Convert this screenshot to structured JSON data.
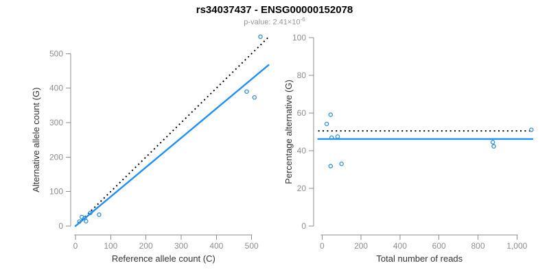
{
  "header": {
    "title": "rs34037437 - ENSG00000152078",
    "pvalue_base": "p-value: 2.41×10",
    "pvalue_exponent": "-6"
  },
  "colors": {
    "fit_line": "#1E8FFF",
    "identity_line": "#000000",
    "point_stroke": "#2E8FE0",
    "axis": "#8E8E8E",
    "tick_label": "#8E8E8E",
    "axis_title": "#333333",
    "subtitle_text": "#969696"
  },
  "chart_data": [
    {
      "name": "allele-counts",
      "type": "scatter",
      "xlabel": "Reference allele count (C)",
      "ylabel": "Alternative allele count (G)",
      "xlim": [
        0,
        548
      ],
      "ylim": [
        0,
        550
      ],
      "xticks": [
        0,
        100,
        200,
        300,
        400,
        500
      ],
      "xtick_labels": [
        "0",
        "100",
        "200",
        "300",
        "400",
        "500"
      ],
      "yticks": [
        0,
        100,
        200,
        300,
        400,
        500
      ],
      "ytick_labels": [
        "0",
        "100",
        "200",
        "300",
        "400",
        "500"
      ],
      "points": [
        [
          11,
          13
        ],
        [
          18,
          26
        ],
        [
          26,
          23
        ],
        [
          42,
          38
        ],
        [
          30,
          14
        ],
        [
          67,
          33
        ],
        [
          486,
          390
        ],
        [
          508,
          373
        ],
        [
          525,
          549
        ]
      ],
      "lines": [
        {
          "name": "identity",
          "style": "dotted",
          "color": "#000000",
          "from": [
            0,
            0
          ],
          "to": [
            548,
            548
          ]
        },
        {
          "name": "fit",
          "style": "solid",
          "color": "#1E8FFF",
          "from": [
            0,
            0
          ],
          "to": [
            548,
            467
          ]
        }
      ],
      "grid": false,
      "legend": null
    },
    {
      "name": "percentage-alternative",
      "type": "scatter",
      "xlabel": "Total number of reads",
      "ylabel": "Percentage alternative (G)",
      "xlim": [
        -20,
        1080
      ],
      "ylim": [
        0,
        100
      ],
      "xticks": [
        0,
        200,
        400,
        600,
        800,
        1000
      ],
      "xtick_labels": [
        "0",
        "200",
        "400",
        "600",
        "800",
        "1,000"
      ],
      "yticks": [
        0,
        20,
        40,
        60,
        80,
        100
      ],
      "ytick_labels": [
        "0",
        "20",
        "40",
        "60",
        "80",
        "100"
      ],
      "points": [
        [
          24,
          54.2
        ],
        [
          44,
          59.1
        ],
        [
          49,
          46.9
        ],
        [
          80,
          47.5
        ],
        [
          44,
          31.8
        ],
        [
          100,
          33
        ],
        [
          876,
          44.5
        ],
        [
          881,
          42.3
        ],
        [
          1074,
          51.1
        ]
      ],
      "lines": [
        {
          "name": "expected",
          "style": "dotted",
          "color": "#000000",
          "y": 50.5,
          "x_range": [
            -20,
            1080
          ]
        },
        {
          "name": "fit",
          "style": "solid",
          "color": "#1E8FFF",
          "y": 46.2,
          "x_range": [
            -20,
            1080
          ]
        }
      ],
      "grid": false,
      "legend": null
    }
  ]
}
